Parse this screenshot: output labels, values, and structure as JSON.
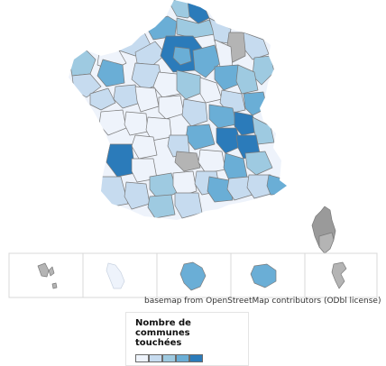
{
  "map": {
    "attribution": "basemap from OpenStreetMap contributors (ODbl license)",
    "legend": {
      "title": "Nombre de communes touchées",
      "classes": [
        "#eef3fb",
        "#c6dbef",
        "#9ecae1",
        "#6aaed6",
        "#2b7bba"
      ]
    },
    "no_data_color": "#b4b4b4",
    "background": "#ffffff"
  }
}
